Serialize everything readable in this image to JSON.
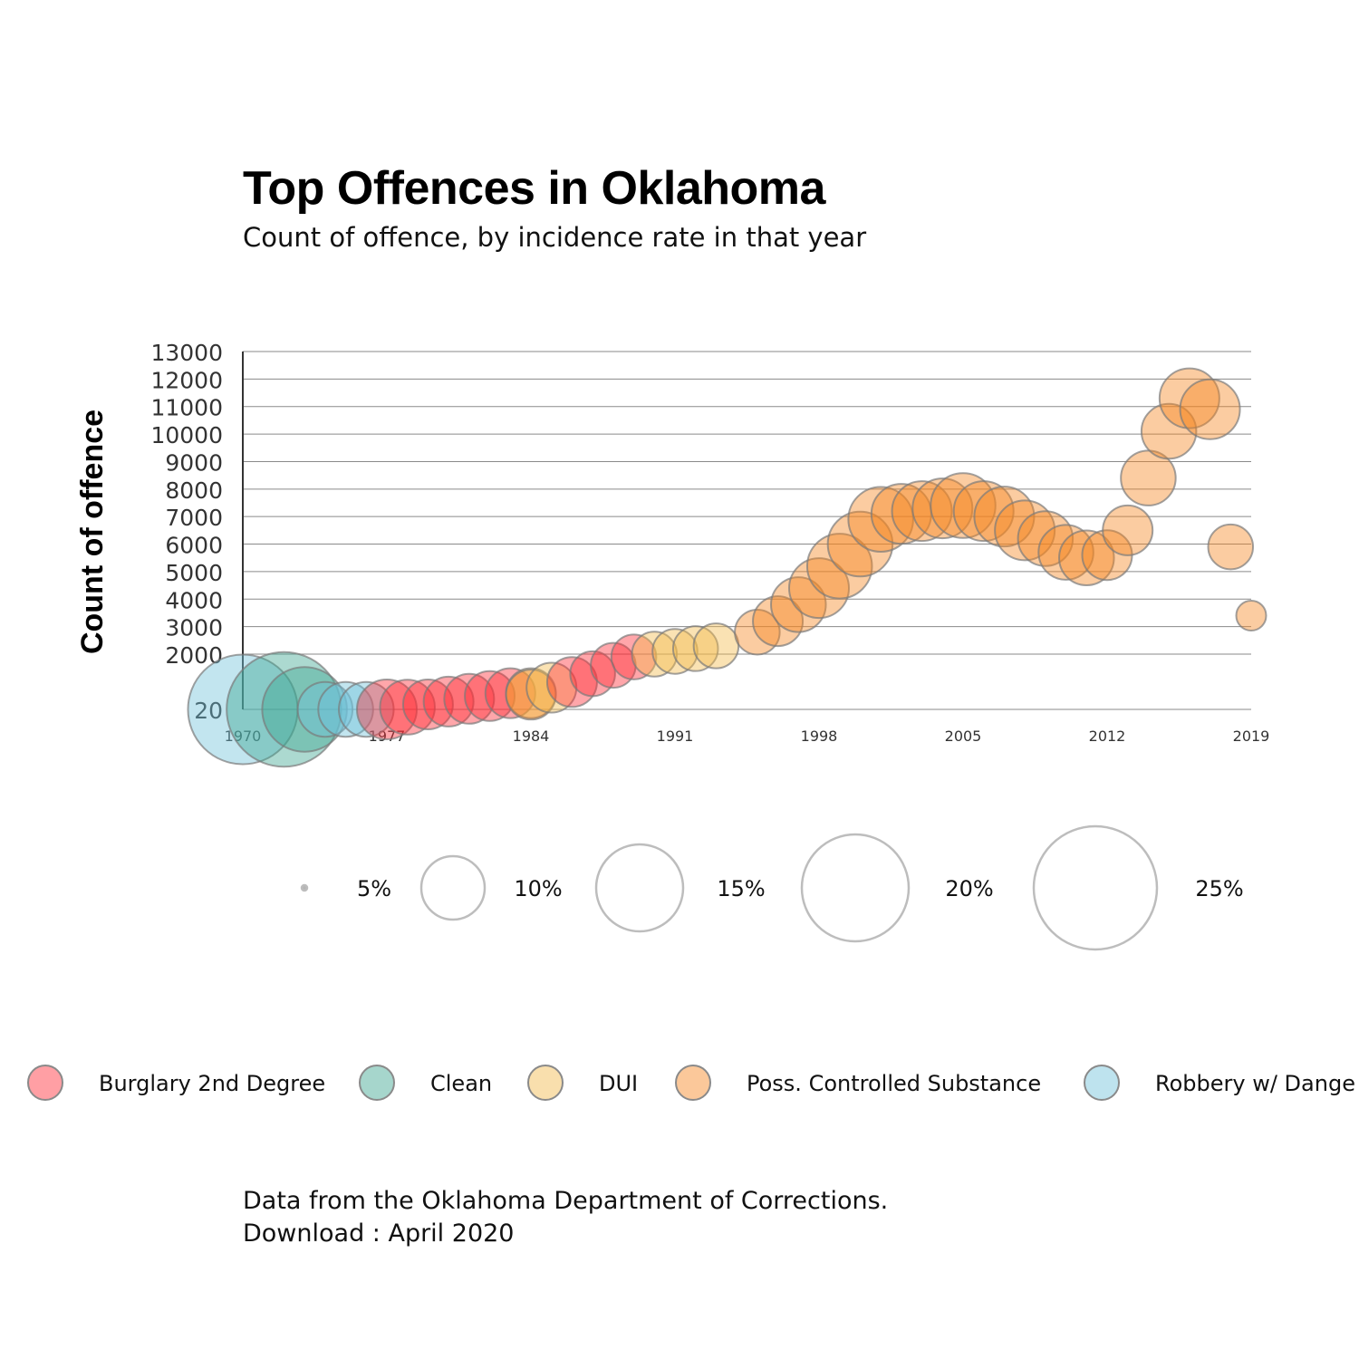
{
  "title": "Top Offences in Oklahoma",
  "subtitle": "Count of offence, by incidence rate in that year",
  "footer": {
    "source": "Data from the Oklahoma Department of Corrections.",
    "download": "Download : April 2020"
  },
  "size_legend": [
    {
      "label": "5%",
      "pct": 5
    },
    {
      "label": "10%",
      "pct": 10
    },
    {
      "label": "15%",
      "pct": 15
    },
    {
      "label": "20%",
      "pct": 20
    },
    {
      "label": "25%",
      "pct": 25
    }
  ],
  "chart_data": {
    "type": "scatter",
    "ylabel": "Count of offence",
    "xlabel": "",
    "y_ticks": [
      20,
      2000,
      3000,
      4000,
      5000,
      6000,
      7000,
      8000,
      9000,
      10000,
      11000,
      12000,
      13000
    ],
    "x_ticks": [
      1970,
      1977,
      1984,
      1991,
      1998,
      2005,
      2012,
      2019
    ],
    "grid": true,
    "colors": {
      "Burglary 2nd Degree": "#ff2a35",
      "Clean": "#3aa58f",
      "DUI": "#f2b94a",
      "Poss. Controlled Substance": "#f6861f",
      "Robbery w/ Dange": "#6ec0da"
    },
    "series": [
      {
        "name": "Robbery w/ Dange",
        "points": [
          {
            "year": 1970,
            "count": 20,
            "rate": 22
          },
          {
            "year": 1974,
            "count": 20,
            "rate": 11
          },
          {
            "year": 1975,
            "count": 20,
            "rate": 11
          },
          {
            "year": 1976,
            "count": 20,
            "rate": 11
          }
        ]
      },
      {
        "name": "Clean",
        "points": [
          {
            "year": 1972,
            "count": 20,
            "rate": 23
          },
          {
            "year": 1973,
            "count": 20,
            "rate": 17
          }
        ]
      },
      {
        "name": "Burglary 2nd Degree",
        "points": [
          {
            "year": 1977,
            "count": 20,
            "rate": 12
          },
          {
            "year": 1978,
            "count": 100,
            "rate": 11
          },
          {
            "year": 1979,
            "count": 200,
            "rate": 10
          },
          {
            "year": 1980,
            "count": 300,
            "rate": 10
          },
          {
            "year": 1981,
            "count": 400,
            "rate": 10
          },
          {
            "year": 1982,
            "count": 500,
            "rate": 10
          },
          {
            "year": 1983,
            "count": 600,
            "rate": 10
          },
          {
            "year": 1986,
            "count": 1000,
            "rate": 10
          },
          {
            "year": 1987,
            "count": 1300,
            "rate": 9
          },
          {
            "year": 1988,
            "count": 1600,
            "rate": 9
          },
          {
            "year": 1989,
            "count": 1900,
            "rate": 9
          }
        ]
      },
      {
        "name": "DUI",
        "points": [
          {
            "year": 1984,
            "count": 600,
            "rate": 10
          },
          {
            "year": 1985,
            "count": 800,
            "rate": 10
          },
          {
            "year": 1990,
            "count": 2000,
            "rate": 9
          },
          {
            "year": 1991,
            "count": 2100,
            "rate": 9
          },
          {
            "year": 1992,
            "count": 2200,
            "rate": 9
          },
          {
            "year": 1993,
            "count": 2300,
            "rate": 9
          }
        ]
      },
      {
        "name": "Poss. Controlled Substance",
        "points": [
          {
            "year": 1984,
            "count": 550,
            "rate": 10
          },
          {
            "year": 1995,
            "count": 2800,
            "rate": 9
          },
          {
            "year": 1996,
            "count": 3200,
            "rate": 10
          },
          {
            "year": 1997,
            "count": 3800,
            "rate": 11
          },
          {
            "year": 1998,
            "count": 4400,
            "rate": 12
          },
          {
            "year": 1999,
            "count": 5200,
            "rate": 13
          },
          {
            "year": 2000,
            "count": 6000,
            "rate": 13
          },
          {
            "year": 2001,
            "count": 6900,
            "rate": 13
          },
          {
            "year": 2002,
            "count": 7100,
            "rate": 12
          },
          {
            "year": 2003,
            "count": 7200,
            "rate": 12
          },
          {
            "year": 2004,
            "count": 7300,
            "rate": 12
          },
          {
            "year": 2005,
            "count": 7400,
            "rate": 13
          },
          {
            "year": 2006,
            "count": 7200,
            "rate": 12
          },
          {
            "year": 2007,
            "count": 7000,
            "rate": 12
          },
          {
            "year": 2008,
            "count": 6500,
            "rate": 12
          },
          {
            "year": 2009,
            "count": 6200,
            "rate": 11
          },
          {
            "year": 2010,
            "count": 5700,
            "rate": 11
          },
          {
            "year": 2011,
            "count": 5500,
            "rate": 11
          },
          {
            "year": 2012,
            "count": 5600,
            "rate": 10
          },
          {
            "year": 2013,
            "count": 6500,
            "rate": 10
          },
          {
            "year": 2014,
            "count": 8400,
            "rate": 11
          },
          {
            "year": 2015,
            "count": 10100,
            "rate": 11
          },
          {
            "year": 2016,
            "count": 11300,
            "rate": 12
          },
          {
            "year": 2017,
            "count": 10900,
            "rate": 12
          },
          {
            "year": 2018,
            "count": 5900,
            "rate": 9
          },
          {
            "year": 2019,
            "count": 3400,
            "rate": 6
          }
        ]
      }
    ],
    "legend": [
      "Burglary 2nd Degree",
      "Clean",
      "DUI",
      "Poss. Controlled Substance",
      "Robbery w/ Dange"
    ],
    "legend_position": "bottom"
  }
}
